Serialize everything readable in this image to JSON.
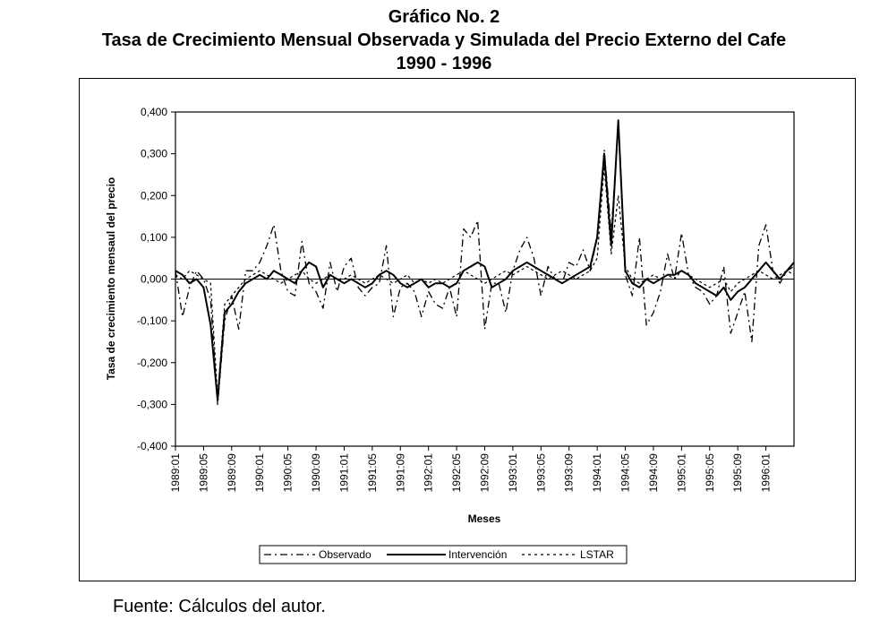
{
  "header": {
    "figure_label": "Gráfico No. 2",
    "title": "Tasa de Crecimiento Mensual Observada y Simulada del Precio Externo del Cafe",
    "subtitle": "1990 - 1996"
  },
  "footer": {
    "source": "Fuente: Cálculos del autor."
  },
  "chart_data": {
    "type": "line",
    "title": "Tasa de Crecimiento Mensual Observada y Simulada del Precio Externo del Cafe",
    "subtitle": "1990 - 1996",
    "xlabel": "Meses",
    "ylabel": "Tasa de crecimiento mensaul del precio",
    "ylim": [
      -0.4,
      0.4
    ],
    "yticks": [
      0.4,
      0.3,
      0.2,
      0.1,
      0.0,
      -0.1,
      -0.2,
      -0.3,
      -0.4
    ],
    "ytick_labels": [
      "0,400",
      "0,300",
      "0,200",
      "0,100",
      "0,000",
      "-0,100",
      "-0,200",
      "-0,300",
      "-0,400"
    ],
    "x_start_index": 0,
    "x_end_index": 88,
    "xticks": [
      {
        "index": 0,
        "label": "1989:01"
      },
      {
        "index": 4,
        "label": "1989:05"
      },
      {
        "index": 8,
        "label": "1989:09"
      },
      {
        "index": 12,
        "label": "1990:01"
      },
      {
        "index": 16,
        "label": "1990:05"
      },
      {
        "index": 20,
        "label": "1990:09"
      },
      {
        "index": 24,
        "label": "1991:01"
      },
      {
        "index": 28,
        "label": "1991:05"
      },
      {
        "index": 32,
        "label": "1991:09"
      },
      {
        "index": 36,
        "label": "1992:01"
      },
      {
        "index": 40,
        "label": "1992:05"
      },
      {
        "index": 44,
        "label": "1992:09"
      },
      {
        "index": 48,
        "label": "1993:01"
      },
      {
        "index": 52,
        "label": "1993:05"
      },
      {
        "index": 56,
        "label": "1993:09"
      },
      {
        "index": 60,
        "label": "1994:01"
      },
      {
        "index": 64,
        "label": "1994:05"
      },
      {
        "index": 68,
        "label": "1994:09"
      },
      {
        "index": 72,
        "label": "1995:01"
      },
      {
        "index": 76,
        "label": "1995:05"
      },
      {
        "index": 80,
        "label": "1995:09"
      },
      {
        "index": 84,
        "label": "1996:01"
      }
    ],
    "legend": {
      "placement": "bottom",
      "entries": [
        "Observado",
        "Intervención",
        "LSTAR"
      ]
    },
    "series": [
      {
        "name": "Observado",
        "style": "dash-dot",
        "values": [
          0.02,
          -0.09,
          -0.02,
          0.02,
          0.0,
          -0.05,
          -0.3,
          -0.1,
          -0.04,
          -0.12,
          0.02,
          0.02,
          0.04,
          0.08,
          0.13,
          0.02,
          -0.03,
          -0.04,
          0.09,
          -0.01,
          -0.03,
          -0.07,
          0.04,
          -0.03,
          0.03,
          0.05,
          -0.02,
          -0.04,
          -0.02,
          -0.01,
          0.08,
          -0.09,
          -0.02,
          -0.01,
          -0.03,
          -0.09,
          -0.03,
          -0.06,
          -0.07,
          -0.02,
          -0.09,
          0.12,
          0.1,
          0.14,
          -0.12,
          -0.01,
          -0.01,
          -0.08,
          0.02,
          0.07,
          0.1,
          0.05,
          -0.04,
          0.03,
          0.0,
          -0.01,
          0.04,
          0.03,
          0.07,
          0.02,
          0.1,
          0.31,
          0.11,
          0.37,
          0.01,
          -0.04,
          0.1,
          -0.11,
          -0.08,
          -0.03,
          0.06,
          0.0,
          0.11,
          0.01,
          -0.02,
          -0.03,
          -0.06,
          -0.04,
          0.03,
          -0.13,
          -0.08,
          -0.03,
          -0.15,
          0.08,
          0.13,
          0.02,
          -0.01,
          0.02,
          0.03
        ]
      },
      {
        "name": "Intervención",
        "style": "solid",
        "values": [
          0.02,
          0.01,
          -0.01,
          0.0,
          -0.02,
          -0.11,
          -0.29,
          -0.08,
          -0.06,
          -0.03,
          -0.01,
          0.0,
          0.01,
          0.0,
          0.02,
          0.01,
          0.0,
          -0.01,
          0.02,
          0.04,
          0.03,
          -0.02,
          0.01,
          0.0,
          -0.01,
          0.0,
          -0.01,
          -0.02,
          -0.01,
          0.01,
          0.02,
          0.01,
          -0.01,
          -0.02,
          -0.01,
          0.0,
          -0.02,
          -0.01,
          -0.01,
          -0.02,
          -0.01,
          0.02,
          0.03,
          0.04,
          0.03,
          -0.02,
          -0.01,
          0.0,
          0.02,
          0.03,
          0.04,
          0.03,
          0.02,
          0.01,
          0.0,
          -0.01,
          0.0,
          0.01,
          0.02,
          0.03,
          0.1,
          0.3,
          0.08,
          0.38,
          0.02,
          -0.01,
          -0.02,
          0.0,
          -0.01,
          0.0,
          0.01,
          0.01,
          0.02,
          0.01,
          -0.01,
          -0.02,
          -0.03,
          -0.04,
          -0.02,
          -0.05,
          -0.03,
          -0.02,
          0.0,
          0.02,
          0.04,
          0.02,
          0.0,
          0.02,
          0.04
        ]
      },
      {
        "name": "LSTAR",
        "style": "dotted",
        "values": [
          0.01,
          0.0,
          0.02,
          0.01,
          0.0,
          -0.01,
          -0.28,
          -0.06,
          -0.04,
          -0.02,
          0.0,
          0.01,
          0.02,
          0.01,
          0.0,
          -0.01,
          0.0,
          0.01,
          0.02,
          0.0,
          -0.01,
          0.0,
          0.01,
          0.0,
          0.0,
          0.01,
          0.0,
          -0.01,
          0.0,
          0.01,
          0.0,
          -0.01,
          0.0,
          0.01,
          -0.01,
          0.0,
          -0.01,
          0.0,
          -0.01,
          0.0,
          0.01,
          0.02,
          0.01,
          0.0,
          -0.01,
          0.0,
          0.01,
          0.02,
          0.01,
          0.02,
          0.03,
          0.02,
          0.01,
          0.0,
          0.01,
          0.02,
          0.01,
          0.0,
          0.01,
          0.02,
          0.05,
          0.27,
          0.06,
          0.2,
          0.03,
          0.0,
          -0.01,
          0.0,
          0.01,
          0.0,
          0.01,
          0.0,
          0.02,
          0.01,
          0.0,
          -0.01,
          -0.02,
          -0.01,
          0.0,
          -0.03,
          -0.01,
          0.0,
          0.01,
          0.02,
          0.01,
          0.0,
          0.01,
          0.02,
          0.01
        ]
      }
    ]
  }
}
